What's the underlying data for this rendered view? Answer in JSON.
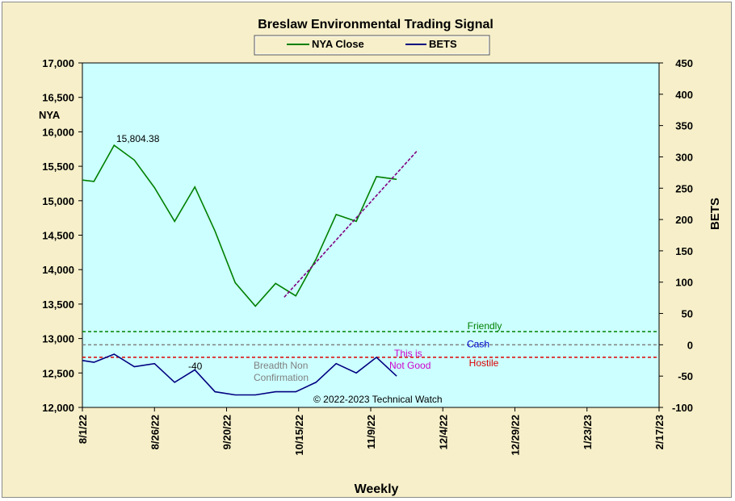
{
  "chart_data": {
    "type": "line",
    "title": "Breslaw Environmental  Trading Signal",
    "xlabel": "Weekly",
    "ylabel_left": "NYA",
    "ylabel_right": "BETS",
    "ylim_left": [
      12000,
      17000
    ],
    "ylim_right": [
      -100,
      450
    ],
    "grid": false,
    "legend_position": "top-center",
    "legend": [
      {
        "name": "NYA Close",
        "color": "#008000"
      },
      {
        "name": "BETS",
        "color": "#000080"
      }
    ],
    "x_ticks": [
      "8/1/22",
      "8/26/22",
      "9/20/22",
      "10/15/22",
      "11/9/22",
      "12/4/22",
      "12/29/22",
      "1/23/23",
      "2/17/23"
    ],
    "y_ticks_left": [
      "12,000",
      "12,500",
      "13,000",
      "13,500",
      "14,000",
      "14,500",
      "15,000",
      "15,500",
      "16,000",
      "16,500",
      "17,000"
    ],
    "y_ticks_right": [
      "-100",
      "-50",
      "0",
      "50",
      "100",
      "150",
      "200",
      "250",
      "300",
      "350",
      "400",
      "450"
    ],
    "x": [
      "8/1/22",
      "8/5/22",
      "8/12/22",
      "8/19/22",
      "8/26/22",
      "9/2/22",
      "9/9/22",
      "9/16/22",
      "9/23/22",
      "9/30/22",
      "10/7/22",
      "10/14/22",
      "10/21/22",
      "10/28/22",
      "11/4/22",
      "11/11/22",
      "11/18/22"
    ],
    "series": [
      {
        "name": "NYA Close",
        "axis": "left",
        "color": "#008000",
        "values": [
          15300,
          15280,
          15804.38,
          15590,
          15190,
          14700,
          15200,
          14560,
          13810,
          13470,
          13800,
          13620,
          14150,
          14800,
          14700,
          15350,
          15310
        ]
      },
      {
        "name": "BETS",
        "axis": "right",
        "color": "#000080",
        "values": [
          -25,
          -28,
          -15,
          -35,
          -30,
          -60,
          -40,
          -75,
          -80,
          -80,
          -75,
          -75,
          -60,
          -30,
          -45,
          -20,
          -50
        ]
      }
    ],
    "trend_line": {
      "color": "#800080",
      "from": {
        "x": "10/10/22",
        "y": 13600
      },
      "to": {
        "x": "11/25/22",
        "y": 15720
      }
    },
    "reference_lines": [
      {
        "label": "Friendly",
        "axis": "right",
        "value": 21,
        "color": "#008000"
      },
      {
        "label": "Cash",
        "axis": "right",
        "value": 0,
        "color": "#808080"
      },
      {
        "label": "Hostile",
        "axis": "right",
        "value": -20,
        "color": "#dd0000"
      }
    ],
    "annotations": {
      "peak_value": "15,804.38",
      "bets_value": "-40",
      "breadth_line1": "Breadth Non",
      "breadth_line2": "Confirmation",
      "this_is": "This is",
      "not_good": "Not Good",
      "copyright": "© 2022-2023  Technical Watch"
    }
  }
}
